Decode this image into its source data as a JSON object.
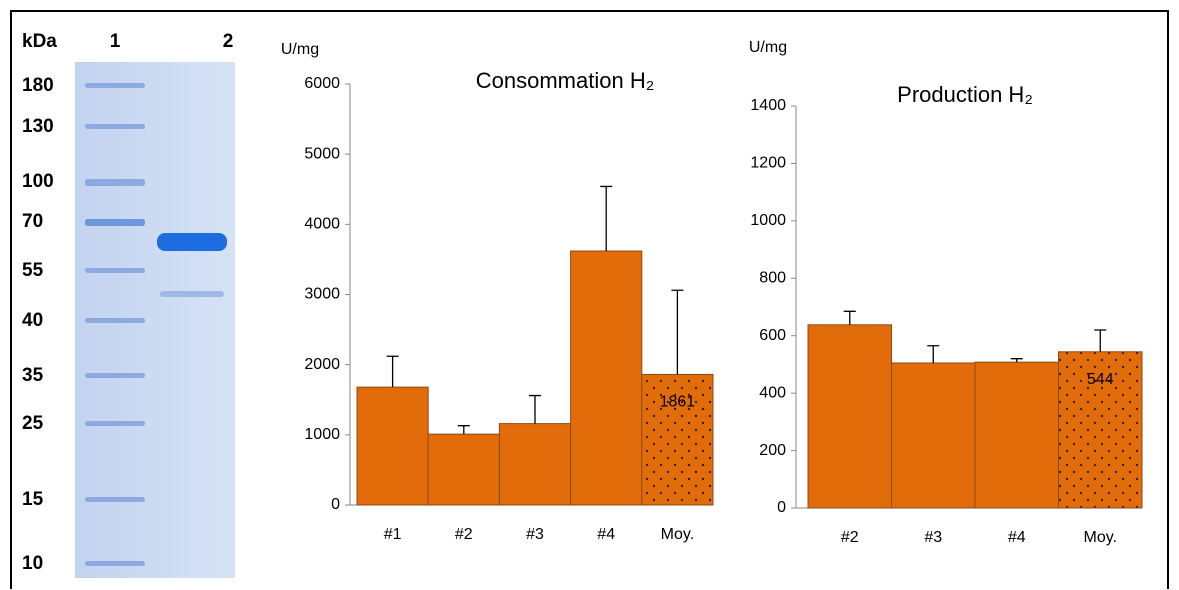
{
  "gel": {
    "unit_label": "kDa",
    "lanes": [
      "1",
      "2"
    ],
    "markers": [
      "180",
      "130",
      "100",
      "70",
      "55",
      "40",
      "35",
      "25",
      "15",
      "10"
    ]
  },
  "chart_data": [
    {
      "type": "bar",
      "title": "Consommation H₂",
      "y_label": "U/mg",
      "categories": [
        "#1",
        "#2",
        "#3",
        "#4",
        "Moy."
      ],
      "values": [
        1680,
        1010,
        1160,
        3620,
        1861
      ],
      "errors": [
        440,
        120,
        400,
        920,
        1200
      ],
      "value_labels": [
        null,
        null,
        null,
        null,
        "1861"
      ],
      "patterns": [
        null,
        null,
        null,
        null,
        "dots"
      ],
      "color": "#e36c0a",
      "ylim": [
        0,
        6000
      ],
      "yticks": [
        0,
        1000,
        2000,
        3000,
        4000,
        5000,
        6000
      ]
    },
    {
      "type": "bar",
      "title": "Production H₂",
      "y_label": "U/mg",
      "categories": [
        "#2",
        "#3",
        "#4",
        "Moy."
      ],
      "values": [
        638,
        505,
        508,
        544
      ],
      "errors": [
        47,
        60,
        12,
        76
      ],
      "value_labels": [
        null,
        null,
        null,
        "544"
      ],
      "patterns": [
        null,
        null,
        null,
        "dots"
      ],
      "color": "#e36c0a",
      "ylim": [
        0,
        1400
      ],
      "yticks": [
        0,
        200,
        400,
        600,
        800,
        1000,
        1200,
        1400
      ]
    }
  ]
}
